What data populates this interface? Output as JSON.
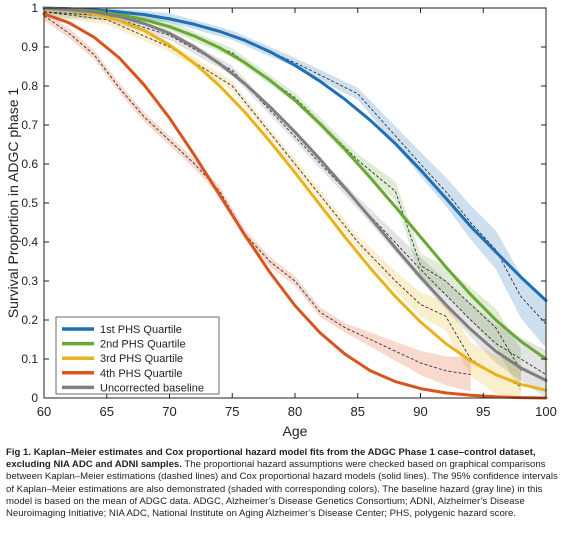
{
  "chart_data": {
    "type": "line",
    "xlabel": "Age",
    "ylabel": "Survival Proportion in ADGC phase 1",
    "xlim": [
      60,
      100
    ],
    "ylim": [
      0,
      1
    ],
    "xticks": [
      "60",
      "65",
      "70",
      "75",
      "80",
      "85",
      "90",
      "95",
      "100"
    ],
    "yticks": [
      "0",
      "0.1",
      "0.2",
      "0.3",
      "0.4",
      "0.5",
      "0.6",
      "0.7",
      "0.8",
      "0.9",
      "1"
    ],
    "grid": false,
    "legend_position": "bottom-left",
    "series": [
      {
        "name": "1st PHS Quartile",
        "color": "#1f6fb5",
        "x": [
          60,
          62,
          64,
          66,
          68,
          70,
          72,
          74,
          76,
          78,
          80,
          82,
          84,
          86,
          88,
          90,
          92,
          94,
          96,
          98,
          100
        ],
        "values": [
          1.0,
          0.998,
          0.995,
          0.99,
          0.983,
          0.972,
          0.958,
          0.94,
          0.917,
          0.888,
          0.853,
          0.812,
          0.765,
          0.712,
          0.652,
          0.585,
          0.513,
          0.44,
          0.375,
          0.31,
          0.25
        ]
      },
      {
        "name": "2nd PHS Quartile",
        "color": "#6aa836",
        "x": [
          60,
          62,
          64,
          66,
          68,
          70,
          72,
          74,
          76,
          78,
          80,
          82,
          84,
          86,
          88,
          90,
          92,
          94,
          96,
          98,
          100
        ],
        "values": [
          1.0,
          0.997,
          0.992,
          0.983,
          0.97,
          0.952,
          0.928,
          0.898,
          0.86,
          0.815,
          0.763,
          0.703,
          0.637,
          0.565,
          0.49,
          0.413,
          0.337,
          0.265,
          0.2,
          0.145,
          0.1
        ]
      },
      {
        "name": "3rd PHS Quartile",
        "color": "#e9b21c",
        "x": [
          60,
          62,
          64,
          66,
          68,
          70,
          72,
          74,
          76,
          78,
          80,
          82,
          84,
          86,
          88,
          90,
          92,
          94,
          96,
          98,
          100
        ],
        "values": [
          1.0,
          0.995,
          0.985,
          0.968,
          0.942,
          0.905,
          0.858,
          0.8,
          0.733,
          0.658,
          0.578,
          0.495,
          0.412,
          0.333,
          0.26,
          0.195,
          0.14,
          0.095,
          0.06,
          0.035,
          0.02
        ]
      },
      {
        "name": "4th PHS Quartile",
        "color": "#d9541e",
        "x": [
          60,
          62,
          64,
          66,
          68,
          70,
          72,
          74,
          76,
          78,
          80,
          82,
          84,
          86,
          88,
          90,
          92,
          94,
          96,
          98,
          100
        ],
        "values": [
          0.985,
          0.962,
          0.925,
          0.872,
          0.802,
          0.718,
          0.622,
          0.52,
          0.418,
          0.322,
          0.237,
          0.167,
          0.112,
          0.07,
          0.042,
          0.024,
          0.013,
          0.007,
          0.003,
          0.001,
          0.0
        ]
      },
      {
        "name": "Uncorrected baseline",
        "color": "#7f7f7f",
        "x": [
          60,
          62,
          64,
          66,
          68,
          70,
          72,
          74,
          76,
          78,
          80,
          82,
          84,
          86,
          88,
          90,
          92,
          94,
          96,
          98,
          100
        ],
        "values": [
          1.0,
          0.996,
          0.99,
          0.978,
          0.96,
          0.935,
          0.9,
          0.857,
          0.806,
          0.747,
          0.682,
          0.612,
          0.538,
          0.462,
          0.385,
          0.31,
          0.24,
          0.176,
          0.12,
          0.077,
          0.045
        ]
      }
    ],
    "kaplan_meier": [
      {
        "series": "1st PHS Quartile",
        "x": [
          60,
          65,
          70,
          75,
          80,
          85,
          90,
          92,
          94,
          96,
          98,
          100
        ],
        "values": [
          1.0,
          0.99,
          0.975,
          0.93,
          0.86,
          0.78,
          0.6,
          0.53,
          0.45,
          0.38,
          0.26,
          0.19
        ]
      },
      {
        "series": "2nd PHS Quartile",
        "x": [
          60,
          65,
          70,
          75,
          80,
          85,
          88,
          90,
          92,
          94,
          96,
          98
        ],
        "values": [
          1.0,
          0.985,
          0.955,
          0.885,
          0.77,
          0.61,
          0.53,
          0.34,
          0.3,
          0.24,
          0.18,
          0.07
        ]
      },
      {
        "series": "3rd PHS Quartile",
        "x": [
          60,
          65,
          70,
          75,
          80,
          85,
          88,
          90,
          92,
          94,
          96,
          98
        ],
        "values": [
          0.99,
          0.97,
          0.9,
          0.8,
          0.6,
          0.4,
          0.3,
          0.24,
          0.21,
          0.1,
          0.06,
          0.03
        ]
      },
      {
        "series": "4th PHS Quartile",
        "x": [
          60,
          62,
          64,
          66,
          68,
          70,
          72,
          74,
          76,
          78,
          80,
          82,
          84,
          86,
          88,
          90,
          92,
          94
        ],
        "values": [
          0.98,
          0.935,
          0.88,
          0.795,
          0.72,
          0.66,
          0.6,
          0.53,
          0.42,
          0.35,
          0.3,
          0.22,
          0.18,
          0.15,
          0.12,
          0.09,
          0.07,
          0.06
        ]
      },
      {
        "series": "Uncorrected baseline",
        "x": [
          60,
          65,
          70,
          75,
          80,
          85,
          90,
          94,
          96,
          98,
          100
        ],
        "values": [
          0.99,
          0.98,
          0.93,
          0.84,
          0.67,
          0.5,
          0.33,
          0.2,
          0.14,
          0.1,
          0.06
        ]
      }
    ]
  },
  "caption": {
    "title": "Fig 1. Kaplan–Meier estimates and Cox proportional hazard model fits from the ADGC Phase 1 case–control dataset, excluding NIA ADC and ADNI samples.",
    "body": "The proportional hazard assumptions were checked based on graphical comparisons between Kaplan–Meier estimations (dashed lines) and Cox proportional hazard models (solid lines). The 95% confidence intervals of Kaplan–Meier estimations are also demonstrated (shaded with corresponding colors). The baseline hazard (gray line) in this model is based on the mean of ADGC data. ADGC, Alzheimer’s Disease Genetics Consortium; ADNI, Alzheimer’s Disease Neuroimaging Initiative; NIA ADC, National Institute on Aging Alzheimer’s Disease Center; PHS, polygenic hazard score."
  }
}
